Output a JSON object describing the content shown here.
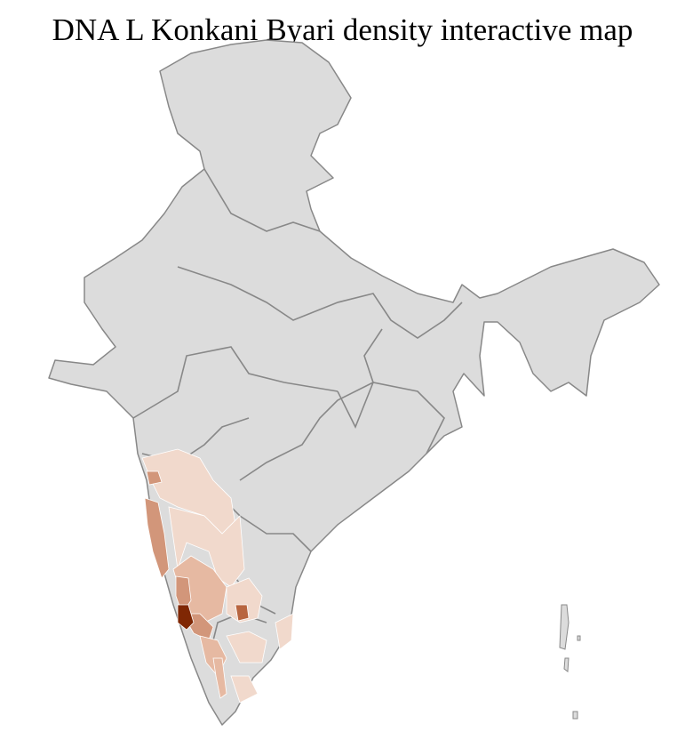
{
  "title": "DNA L Konkani Byari density interactive map",
  "map": {
    "base_fill": "#dcdcdc",
    "district_border": "#ffffff",
    "state_border": "#888888",
    "density_scale": [
      "#f1d9cc",
      "#e6b9a2",
      "#d2967a",
      "#b8653f",
      "#7f2704"
    ]
  }
}
